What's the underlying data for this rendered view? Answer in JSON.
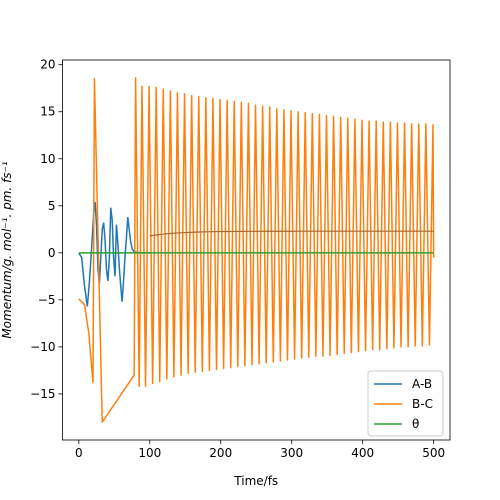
{
  "chart_data": {
    "type": "line",
    "title": "",
    "xlabel": "Time/fs",
    "ylabel": "Momentum/g. mol⁻¹. pm. fs⁻¹",
    "xlim": [
      -23,
      523
    ],
    "ylim": [
      -19.9,
      20.5
    ],
    "xticks": [
      0,
      100,
      200,
      300,
      400,
      500
    ],
    "yticks": [
      -15,
      -10,
      -5,
      0,
      5,
      10,
      15,
      20
    ],
    "grid": false,
    "legend_position": "lower-right",
    "colors": {
      "A-B": "#1f77b4",
      "B-C": "#ff7f0e",
      "θ": "#2ca02c"
    },
    "series": [
      {
        "name": "A-B",
        "x": [
          0,
          4,
          8,
          12,
          15,
          18,
          21,
          23,
          25,
          27,
          29,
          31,
          33,
          35,
          37,
          39,
          41,
          43,
          45,
          47,
          49,
          51,
          53,
          55,
          57,
          59,
          61,
          63,
          65,
          67,
          69,
          71,
          73,
          75,
          77,
          79,
          82,
          85,
          88,
          92,
          96,
          100
        ],
        "values": [
          0,
          -0.5,
          -3.5,
          -5.7,
          -3.0,
          0.5,
          4.2,
          5.4,
          2.8,
          -1.8,
          -3.3,
          -0.5,
          2.5,
          3.2,
          1.3,
          -1.8,
          -3.0,
          -0.6,
          4.8,
          3.5,
          -0.5,
          -2.5,
          3.0,
          1.0,
          -1.5,
          -3.5,
          -5.2,
          -3.0,
          -0.5,
          1.5,
          3.8,
          2.5,
          1.2,
          0.5,
          0.2,
          0.1,
          0.05,
          0.02,
          0.0,
          0.0,
          0.0,
          0.0
        ]
      },
      {
        "name": "B-C",
        "description_note": "",
        "x_peaks": [
          22,
          80,
          89,
          99,
          109,
          119,
          129,
          139,
          149,
          159,
          169,
          179,
          189,
          199,
          209,
          219,
          229,
          239,
          249,
          259,
          269,
          279,
          289,
          299,
          309,
          319,
          329,
          339,
          349,
          359,
          369,
          379,
          389,
          399,
          409,
          419,
          429,
          439,
          449,
          459,
          469,
          479,
          489,
          499
        ],
        "peaks": [
          18.5,
          18.6,
          17.7,
          17.7,
          17.6,
          17.4,
          17.2,
          17.0,
          16.9,
          16.7,
          16.6,
          16.5,
          16.4,
          16.3,
          16.2,
          16.1,
          16.0,
          15.9,
          15.7,
          15.6,
          15.5,
          15.3,
          15.2,
          15.1,
          15.0,
          14.9,
          14.8,
          14.7,
          14.6,
          14.5,
          14.4,
          14.3,
          14.2,
          14.1,
          14.0,
          14.0,
          13.9,
          13.9,
          13.8,
          13.8,
          13.7,
          13.7,
          13.7,
          13.6
        ],
        "x_troughs": [
          20,
          33,
          78,
          85,
          94,
          104,
          114,
          124,
          134,
          144,
          154,
          164,
          174,
          184,
          194,
          204,
          214,
          224,
          234,
          244,
          254,
          264,
          274,
          284,
          294,
          304,
          314,
          324,
          334,
          344,
          354,
          364,
          374,
          384,
          394,
          404,
          414,
          424,
          434,
          444,
          454,
          464,
          474,
          484,
          494
        ],
        "troughs": [
          -13.8,
          -18.0,
          -13.0,
          -14.2,
          -14.2,
          -13.9,
          -13.7,
          -13.4,
          -13.2,
          -13.0,
          -12.8,
          -12.7,
          -12.6,
          -12.5,
          -12.4,
          -12.3,
          -12.2,
          -12.1,
          -12.0,
          -11.9,
          -11.8,
          -11.7,
          -11.6,
          -11.5,
          -11.4,
          -11.3,
          -11.2,
          -11.1,
          -11.0,
          -11.0,
          -10.9,
          -10.8,
          -10.7,
          -10.6,
          -10.5,
          -10.4,
          -10.3,
          -10.3,
          -10.2,
          -10.1,
          -10.0,
          -10.0,
          -9.9,
          -9.9,
          -9.8
        ]
      },
      {
        "name": "θ",
        "x": [
          0,
          500
        ],
        "values": [
          0,
          0
        ]
      }
    ],
    "legend": [
      "A-B",
      "B-C",
      "θ"
    ]
  }
}
